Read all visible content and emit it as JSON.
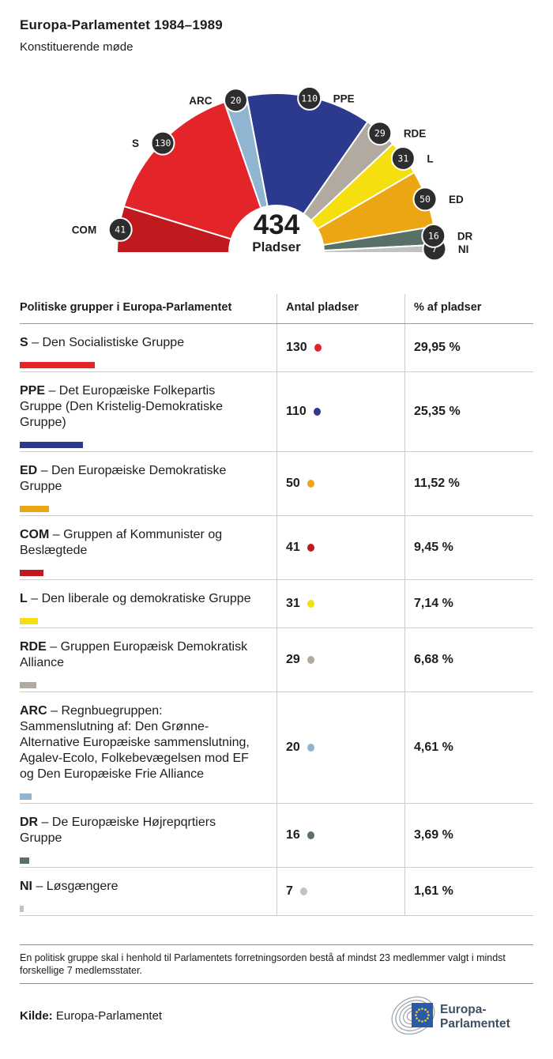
{
  "header": {
    "title": "Europa-Parlamentet 1984–1989",
    "subtitle": "Konstituerende møde"
  },
  "chart_data": {
    "type": "parliament-hemicycle",
    "total": 434,
    "total_label": "Pladser",
    "badge_color": "#2d2d2d",
    "legend_position": "around-arc",
    "groups": [
      {
        "abbr": "COM",
        "seats": 41,
        "color": "#c01a1f"
      },
      {
        "abbr": "S",
        "seats": 130,
        "color": "#e32529"
      },
      {
        "abbr": "ARC",
        "seats": 20,
        "color": "#8fb5d1"
      },
      {
        "abbr": "PPE",
        "seats": 110,
        "color": "#2c3a8d"
      },
      {
        "abbr": "RDE",
        "seats": 29,
        "color": "#b2a9a0"
      },
      {
        "abbr": "L",
        "seats": 31,
        "color": "#f5df0e"
      },
      {
        "abbr": "ED",
        "seats": 50,
        "color": "#eca613"
      },
      {
        "abbr": "DR",
        "seats": 16,
        "color": "#587065"
      },
      {
        "abbr": "NI",
        "seats": 7,
        "color": "#c2c2c2"
      }
    ]
  },
  "table": {
    "headers": [
      "Politiske grupper i Europa-Parlamentet",
      "Antal pladser",
      "% af pladser"
    ],
    "rows": [
      {
        "abbr": "S",
        "name": "– Den Socialistiske Gruppe",
        "seats": "130",
        "pct": "29,95 %",
        "color": "#e32529"
      },
      {
        "abbr": "PPE",
        "name": "– Det Europæiske Folkepartis Gruppe (Den Kristelig-Demokratiske Gruppe)",
        "seats": "110",
        "pct": "25,35 %",
        "color": "#2c3a8d"
      },
      {
        "abbr": "ED",
        "name": "– Den Europæiske Demokratiske Gruppe",
        "seats": "50",
        "pct": "11,52 %",
        "color": "#eca613"
      },
      {
        "abbr": "COM",
        "name": "– Gruppen af Kommunister og Beslægtede",
        "seats": "41",
        "pct": "9,45 %",
        "color": "#c01a1f"
      },
      {
        "abbr": "L",
        "name": "– Den liberale og demokratiske Gruppe",
        "seats": "31",
        "pct": "7,14 %",
        "color": "#f5df0e"
      },
      {
        "abbr": "RDE",
        "name": "– Gruppen Europæisk Demokratisk Alliance",
        "seats": "29",
        "pct": "6,68 %",
        "color": "#b2a9a0"
      },
      {
        "abbr": "ARC",
        "name": "– Regnbuegruppen: Sammenslutning af: Den Grønne-Alternative Europæiske sammenslutning, Agalev-Ecolo, Folkebevægelsen mod EF og Den Europæiske Frie Alliance",
        "seats": "20",
        "pct": "4,61 %",
        "color": "#8fb5d1"
      },
      {
        "abbr": "DR",
        "name": "– De Europæiske Højrepqrtiers Gruppe",
        "seats": "16",
        "pct": "3,69 %",
        "color": "#587065"
      },
      {
        "abbr": "NI",
        "name": "– Løsgængere",
        "seats": "7",
        "pct": "1,61 %",
        "color": "#c2c2c2"
      }
    ]
  },
  "footnote": "En politisk gruppe skal i henhold til Parlamentets forretningsorden bestå af mindst 23 medlemmer valgt i mindst forskellige 7 medlemsstater.",
  "source": {
    "label": "Kilde:",
    "text": "Europa-Parlamentet"
  },
  "logo": {
    "line1": "Europa-",
    "line2": "Parlamentet",
    "flag_blue": "#2b5aa7",
    "star_yellow": "#f8d12e",
    "arc_gray": "#9aa1a8",
    "text_color": "#3e4f63"
  }
}
